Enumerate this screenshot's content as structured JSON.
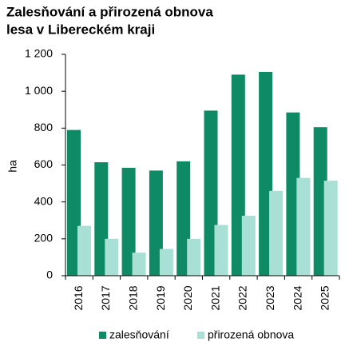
{
  "chart_data": {
    "type": "bar",
    "title": [
      "Zalesňování a přirozená obnova",
      "lesa v Libereckém kraji"
    ],
    "y_label": "ha",
    "categories": [
      "2016",
      "2017",
      "2018",
      "2019",
      "2020",
      "2021",
      "2022",
      "2023",
      "2024",
      "2025"
    ],
    "series": [
      {
        "name": "zalesňování",
        "color": "#0e8a64",
        "values": [
          790,
          615,
          585,
          570,
          620,
          895,
          1090,
          1105,
          885,
          805
        ]
      },
      {
        "name": "přirozená obnova",
        "color": "#a9e0d5",
        "values": [
          270,
          200,
          125,
          145,
          200,
          275,
          325,
          460,
          530,
          515
        ]
      }
    ],
    "ylim": [
      0,
      1200
    ],
    "yticks": [
      0,
      200,
      400,
      600,
      800,
      {
        "value": 1000,
        "label": "1 000"
      },
      {
        "value": 1200,
        "label": "1 200"
      }
    ],
    "legend": "bottom"
  }
}
